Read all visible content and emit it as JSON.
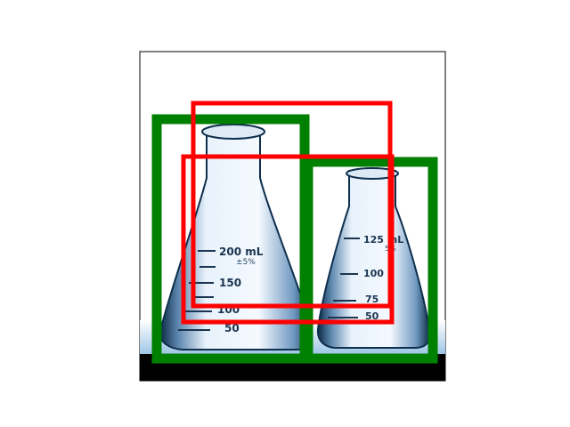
{
  "image": {
    "subject": "two glass Erlenmeyer flasks",
    "large_flask": {
      "labels": [
        "200 mL",
        "±5%",
        "150",
        "100",
        "50"
      ]
    },
    "small_flask": {
      "labels": [
        "125 mL",
        "5%",
        "100",
        "75",
        "50"
      ]
    }
  },
  "boxes": {
    "green": {
      "color": "#008000",
      "count": 2
    },
    "red": {
      "color": "#ff0000",
      "count": 2
    }
  }
}
